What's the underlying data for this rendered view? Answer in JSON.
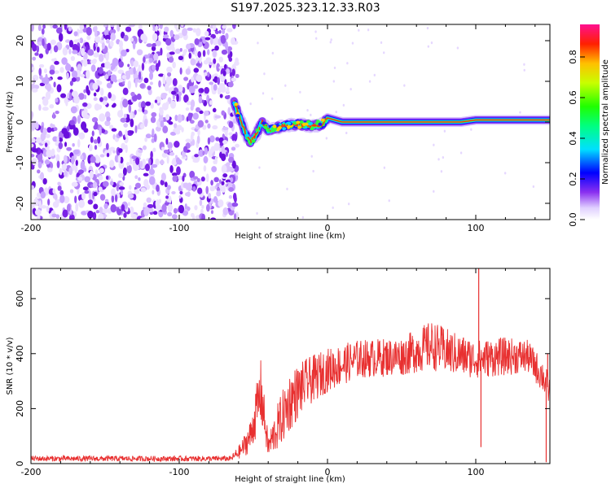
{
  "title": "S197.2025.323.12.33.R03",
  "chart_data": [
    {
      "type": "heatmap",
      "name": "spectrogram",
      "xlabel": "Height of straight line (km)",
      "ylabel": "Frequency (Hz)",
      "xlim": [
        -200,
        150
      ],
      "ylim": [
        -24,
        24
      ],
      "xticks": [
        "-200",
        "-100",
        "0",
        "100"
      ],
      "yticks": [
        "-20",
        "-10",
        "0",
        "10",
        "20"
      ],
      "noise_region_x": [
        -200,
        -63
      ],
      "signal_track": [
        {
          "x": -63,
          "f": 5
        },
        {
          "x": -60,
          "f": 2
        },
        {
          "x": -55,
          "f": -3
        },
        {
          "x": -52,
          "f": -5
        },
        {
          "x": -48,
          "f": -3
        },
        {
          "x": -44,
          "f": 0
        },
        {
          "x": -40,
          "f": -2
        },
        {
          "x": -35,
          "f": -1.5
        },
        {
          "x": -30,
          "f": -1
        },
        {
          "x": -20,
          "f": -0.5
        },
        {
          "x": -10,
          "f": -1
        },
        {
          "x": -3,
          "f": -0.5
        },
        {
          "x": 0,
          "f": 1
        },
        {
          "x": 5,
          "f": 0.5
        },
        {
          "x": 10,
          "f": 0
        },
        {
          "x": 50,
          "f": 0
        },
        {
          "x": 90,
          "f": 0
        },
        {
          "x": 100,
          "f": 0.5
        },
        {
          "x": 150,
          "f": 0.5
        }
      ],
      "colorbar": {
        "label": "Normalized spectral amplitude",
        "ticks": [
          "0.0",
          "0.2",
          "0.4",
          "0.6",
          "0.8"
        ],
        "range": [
          0,
          0.96
        ]
      }
    },
    {
      "type": "line",
      "name": "snr",
      "xlabel": "Height of straight line (km)",
      "ylabel": "SNR (10 * v/v)",
      "xlim": [
        -200,
        150
      ],
      "ylim": [
        0,
        710
      ],
      "xticks": [
        "-200",
        "-100",
        "0",
        "100"
      ],
      "yticks": [
        "0",
        "200",
        "400",
        "600"
      ],
      "color": "#e83030",
      "envelope": [
        {
          "x": -200,
          "y": 18,
          "amp": 10
        },
        {
          "x": -65,
          "y": 18,
          "amp": 10
        },
        {
          "x": -58,
          "y": 50,
          "amp": 30
        },
        {
          "x": -52,
          "y": 100,
          "amp": 60
        },
        {
          "x": -45,
          "y": 260,
          "amp": 120
        },
        {
          "x": -40,
          "y": 60,
          "amp": 40
        },
        {
          "x": -33,
          "y": 140,
          "amp": 90
        },
        {
          "x": -25,
          "y": 230,
          "amp": 110
        },
        {
          "x": -15,
          "y": 290,
          "amp": 90
        },
        {
          "x": 0,
          "y": 340,
          "amp": 80
        },
        {
          "x": 20,
          "y": 380,
          "amp": 70
        },
        {
          "x": 50,
          "y": 390,
          "amp": 70
        },
        {
          "x": 70,
          "y": 430,
          "amp": 90
        },
        {
          "x": 85,
          "y": 400,
          "amp": 80
        },
        {
          "x": 100,
          "y": 380,
          "amp": 70
        },
        {
          "x": 120,
          "y": 390,
          "amp": 70
        },
        {
          "x": 135,
          "y": 390,
          "amp": 60
        },
        {
          "x": 145,
          "y": 320,
          "amp": 60
        },
        {
          "x": 150,
          "y": 260,
          "amp": 60
        }
      ],
      "spikes": [
        {
          "x": 102,
          "y": 710
        },
        {
          "x": 103.5,
          "y": 60
        },
        {
          "x": 147.5,
          "y": 5
        },
        {
          "x": 148.5,
          "y": 400
        }
      ]
    }
  ]
}
